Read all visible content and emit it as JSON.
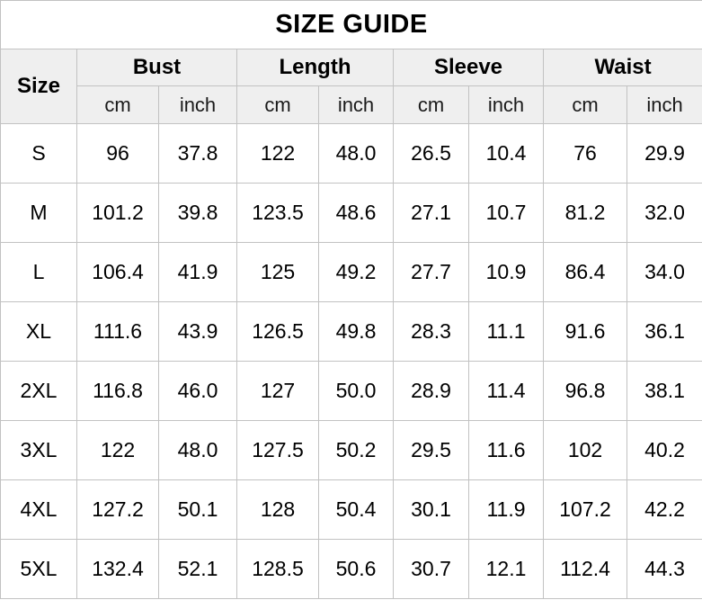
{
  "title": "SIZE GUIDE",
  "chart_data": {
    "type": "table",
    "title": "SIZE GUIDE",
    "size_column_header": "Size",
    "column_groups": [
      {
        "label": "Bust",
        "units": [
          "cm",
          "inch"
        ]
      },
      {
        "label": "Length",
        "units": [
          "cm",
          "inch"
        ]
      },
      {
        "label": "Sleeve",
        "units": [
          "cm",
          "inch"
        ]
      },
      {
        "label": "Waist",
        "units": [
          "cm",
          "inch"
        ]
      }
    ],
    "columns": [
      "Size",
      "Bust cm",
      "Bust inch",
      "Length cm",
      "Length inch",
      "Sleeve cm",
      "Sleeve inch",
      "Waist cm",
      "Waist inch"
    ],
    "rows": [
      {
        "size": "S",
        "values": [
          "96",
          "37.8",
          "122",
          "48.0",
          "26.5",
          "10.4",
          "76",
          "29.9"
        ]
      },
      {
        "size": "M",
        "values": [
          "101.2",
          "39.8",
          "123.5",
          "48.6",
          "27.1",
          "10.7",
          "81.2",
          "32.0"
        ]
      },
      {
        "size": "L",
        "values": [
          "106.4",
          "41.9",
          "125",
          "49.2",
          "27.7",
          "10.9",
          "86.4",
          "34.0"
        ]
      },
      {
        "size": "XL",
        "values": [
          "111.6",
          "43.9",
          "126.5",
          "49.8",
          "28.3",
          "11.1",
          "91.6",
          "36.1"
        ]
      },
      {
        "size": "2XL",
        "values": [
          "116.8",
          "46.0",
          "127",
          "50.0",
          "28.9",
          "11.4",
          "96.8",
          "38.1"
        ]
      },
      {
        "size": "3XL",
        "values": [
          "122",
          "48.0",
          "127.5",
          "50.2",
          "29.5",
          "11.6",
          "102",
          "40.2"
        ]
      },
      {
        "size": "4XL",
        "values": [
          "127.2",
          "50.1",
          "128",
          "50.4",
          "30.1",
          "11.9",
          "107.2",
          "42.2"
        ]
      },
      {
        "size": "5XL",
        "values": [
          "132.4",
          "52.1",
          "128.5",
          "50.6",
          "30.7",
          "12.1",
          "112.4",
          "44.3"
        ]
      }
    ]
  },
  "colors": {
    "header_bg": "#efefef",
    "grid_border": "#c2c2c2",
    "outer_border": "#9c9c9c",
    "text": "#000000",
    "background": "#ffffff"
  }
}
